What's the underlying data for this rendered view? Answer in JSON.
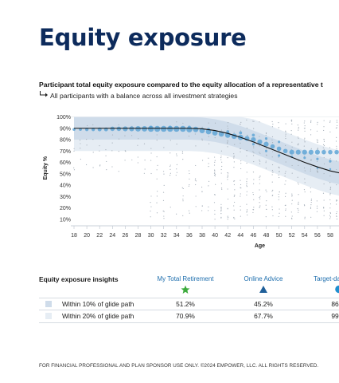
{
  "page": {
    "title": "Equity exposure",
    "subtitle": "Participant total equity exposure compared to the equity allocation of a representative t",
    "subnote": "All participants with a balance across all investment strategies",
    "footer": "FOR FINANCIAL PROFESSIONAL AND PLAN SPONSOR USE ONLY. ©2024 EMPOWER, LLC. ALL RIGHTS RESERVED."
  },
  "chart_data": {
    "type": "scatter",
    "xlabel": "Age",
    "ylabel": "Equity %",
    "x_ticks": [
      18,
      20,
      22,
      24,
      26,
      28,
      30,
      32,
      34,
      36,
      38,
      40,
      42,
      44,
      46,
      48,
      50,
      52,
      54,
      56,
      58
    ],
    "y_ticks": [
      "10%",
      "20%",
      "30%",
      "40%",
      "50%",
      "60%",
      "70%",
      "80%",
      "90%",
      "100%"
    ],
    "y_tick_values": [
      10,
      20,
      30,
      40,
      50,
      60,
      70,
      80,
      90,
      100
    ],
    "xlim": [
      17,
      61
    ],
    "ylim": [
      0,
      103
    ],
    "glide_path": {
      "x": [
        18,
        20,
        24,
        28,
        32,
        36,
        38,
        40,
        42,
        44,
        46,
        48,
        50,
        52,
        54,
        56,
        58,
        60
      ],
      "y": [
        90,
        90,
        90,
        90,
        90,
        90,
        89.5,
        88,
        85.5,
        82,
        78,
        73.5,
        69,
        64.5,
        60,
        56,
        52.5,
        50
      ]
    },
    "band_20_width": 20,
    "band_10_width": 10,
    "bubbles": [
      {
        "x": 18,
        "y": 89,
        "r": 3
      },
      {
        "x": 19,
        "y": 89,
        "r": 3
      },
      {
        "x": 20,
        "y": 89,
        "r": 3.5
      },
      {
        "x": 21,
        "y": 89,
        "r": 3.5
      },
      {
        "x": 22,
        "y": 89,
        "r": 4
      },
      {
        "x": 23,
        "y": 89,
        "r": 4
      },
      {
        "x": 24,
        "y": 89.5,
        "r": 4.5
      },
      {
        "x": 25,
        "y": 89.5,
        "r": 4.5
      },
      {
        "x": 26,
        "y": 89.5,
        "r": 5
      },
      {
        "x": 27,
        "y": 89.5,
        "r": 5
      },
      {
        "x": 28,
        "y": 89.5,
        "r": 5.5
      },
      {
        "x": 29,
        "y": 89.5,
        "r": 5.5
      },
      {
        "x": 30,
        "y": 89.5,
        "r": 6
      },
      {
        "x": 31,
        "y": 89.5,
        "r": 6
      },
      {
        "x": 32,
        "y": 89.5,
        "r": 6
      },
      {
        "x": 33,
        "y": 89.5,
        "r": 6
      },
      {
        "x": 34,
        "y": 89.5,
        "r": 6
      },
      {
        "x": 35,
        "y": 89.5,
        "r": 6
      },
      {
        "x": 36,
        "y": 89,
        "r": 6
      },
      {
        "x": 37,
        "y": 89,
        "r": 5.5
      },
      {
        "x": 38,
        "y": 88,
        "r": 5.5
      },
      {
        "x": 39,
        "y": 87,
        "r": 5.5
      },
      {
        "x": 40,
        "y": 86,
        "r": 5.5
      },
      {
        "x": 41,
        "y": 85,
        "r": 5.5
      },
      {
        "x": 42,
        "y": 84,
        "r": 5.5
      },
      {
        "x": 43,
        "y": 83,
        "r": 5.5
      },
      {
        "x": 44,
        "y": 82,
        "r": 5.5
      },
      {
        "x": 45,
        "y": 81,
        "r": 5
      },
      {
        "x": 46,
        "y": 80,
        "r": 5
      },
      {
        "x": 47,
        "y": 78,
        "r": 5
      },
      {
        "x": 48,
        "y": 76,
        "r": 5
      },
      {
        "x": 49,
        "y": 74,
        "r": 4.5
      },
      {
        "x": 50,
        "y": 72,
        "r": 4.5
      },
      {
        "x": 51,
        "y": 70,
        "r": 4.5
      },
      {
        "x": 52,
        "y": 69,
        "r": 5
      },
      {
        "x": 53,
        "y": 69,
        "r": 5
      },
      {
        "x": 54,
        "y": 69,
        "r": 5
      },
      {
        "x": 55,
        "y": 69,
        "r": 5
      },
      {
        "x": 56,
        "y": 69,
        "r": 5
      },
      {
        "x": 57,
        "y": 69,
        "r": 4.5
      },
      {
        "x": 58,
        "y": 69,
        "r": 4.5
      },
      {
        "x": 59,
        "y": 69,
        "r": 4.5
      },
      {
        "x": 60,
        "y": 69,
        "r": 4.5
      },
      {
        "x": 30,
        "y": 91,
        "r": 3
      },
      {
        "x": 33,
        "y": 91,
        "r": 3
      },
      {
        "x": 36,
        "y": 91,
        "r": 3
      },
      {
        "x": 39,
        "y": 89,
        "r": 3
      },
      {
        "x": 42,
        "y": 87,
        "r": 3
      },
      {
        "x": 44,
        "y": 86,
        "r": 3
      },
      {
        "x": 46,
        "y": 84,
        "r": 3
      },
      {
        "x": 48,
        "y": 81,
        "r": 2.5
      },
      {
        "x": 50,
        "y": 78,
        "r": 2.5
      },
      {
        "x": 46,
        "y": 76,
        "r": 2.5
      },
      {
        "x": 48,
        "y": 70,
        "r": 2.5
      },
      {
        "x": 50,
        "y": 66,
        "r": 2.5
      },
      {
        "x": 52,
        "y": 65,
        "r": 2.5
      },
      {
        "x": 54,
        "y": 64,
        "r": 2.5
      },
      {
        "x": 56,
        "y": 63,
        "r": 2.5
      },
      {
        "x": 58,
        "y": 61,
        "r": 2.5
      },
      {
        "x": 56,
        "y": 55,
        "r": 2
      },
      {
        "x": 58,
        "y": 54,
        "r": 2
      },
      {
        "x": 60,
        "y": 53,
        "r": 2
      }
    ],
    "colors": {
      "band_20": "#e6edf4",
      "band_10": "#cfdcea",
      "bubble": "#5ba4d6",
      "glide_path": "#111111",
      "dots": "#a9b2bc",
      "axis": "#b9c2cc"
    }
  },
  "insights": {
    "heading": "Equity exposure insights",
    "columns": [
      {
        "label": "My Total Retirement",
        "icon": "star-icon",
        "color": "#3caa3c"
      },
      {
        "label": "Online Advice",
        "icon": "triangle-icon",
        "color": "#1f5f99"
      },
      {
        "label": "Target-da",
        "icon": "circle-icon",
        "color": "#1f8fd0"
      }
    ],
    "rows": [
      {
        "label": "Within 10% of glide path",
        "swatch": "#cfdcea",
        "values": [
          "51.2%",
          "45.2%",
          "86"
        ]
      },
      {
        "label": "Within 20% of glide path",
        "swatch": "#e6edf4",
        "values": [
          "70.9%",
          "67.7%",
          "99"
        ]
      }
    ]
  }
}
